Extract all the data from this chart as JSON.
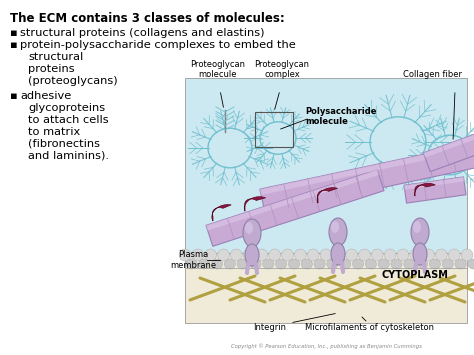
{
  "background_color": "#ffffff",
  "border_color": "#cccccc",
  "text_color": "#000000",
  "heading": "The ECM contains 3 classes of molecules:",
  "bullet1": "structural proteins (collagens and elastins)",
  "bullet2a": "protein-polysaccharide complexes to embed the",
  "bullet2b": "    structural",
  "bullet2c": "    proteins",
  "bullet2d": "    (proteoglycans)",
  "bullet3a": "adhesive",
  "bullet3b": "    glycoproteins",
  "bullet3c": "    to attach cells",
  "bullet3d": "    to matrix",
  "bullet3e": "    (fibronectins",
  "bullet3f": "    and laminins).",
  "bullet_symbol": "▪",
  "label_proteoglycan_mol": "Proteoglycan\nmolecule",
  "label_proteoglycan_cpx": "Proteoglycan\ncomplex",
  "label_collagen": "Collagen fiber",
  "label_polysaccharide": "Polysaccharide\nmolecule",
  "label_plasma": "Plasma\nmembrane",
  "label_cytoplasm": "CYTOPLASM",
  "label_integrin": "Integrin",
  "label_microfilaments": "Microfilaments of cytoskeleton",
  "copyright": "Copyright © Pearson Education, Inc., publishing as Benjamin Cummings",
  "diagram_bg": "#cce8f0",
  "cytoplasm_bg": "#f0ead8",
  "collagen_color": "#c8aad4",
  "collagen_edge": "#9a80b8",
  "collagen_seg": "#b090c0",
  "fibronectin_color": "#8b1545",
  "integrin_color": "#c0aad0",
  "proteoglycan_color": "#70c0d0",
  "membrane_dot_color": "#d8d8d8",
  "membrane_dot_edge": "#aaaaaa",
  "microfilament_color": "#b0a040",
  "figsize": [
    4.74,
    3.55
  ],
  "dpi": 100
}
